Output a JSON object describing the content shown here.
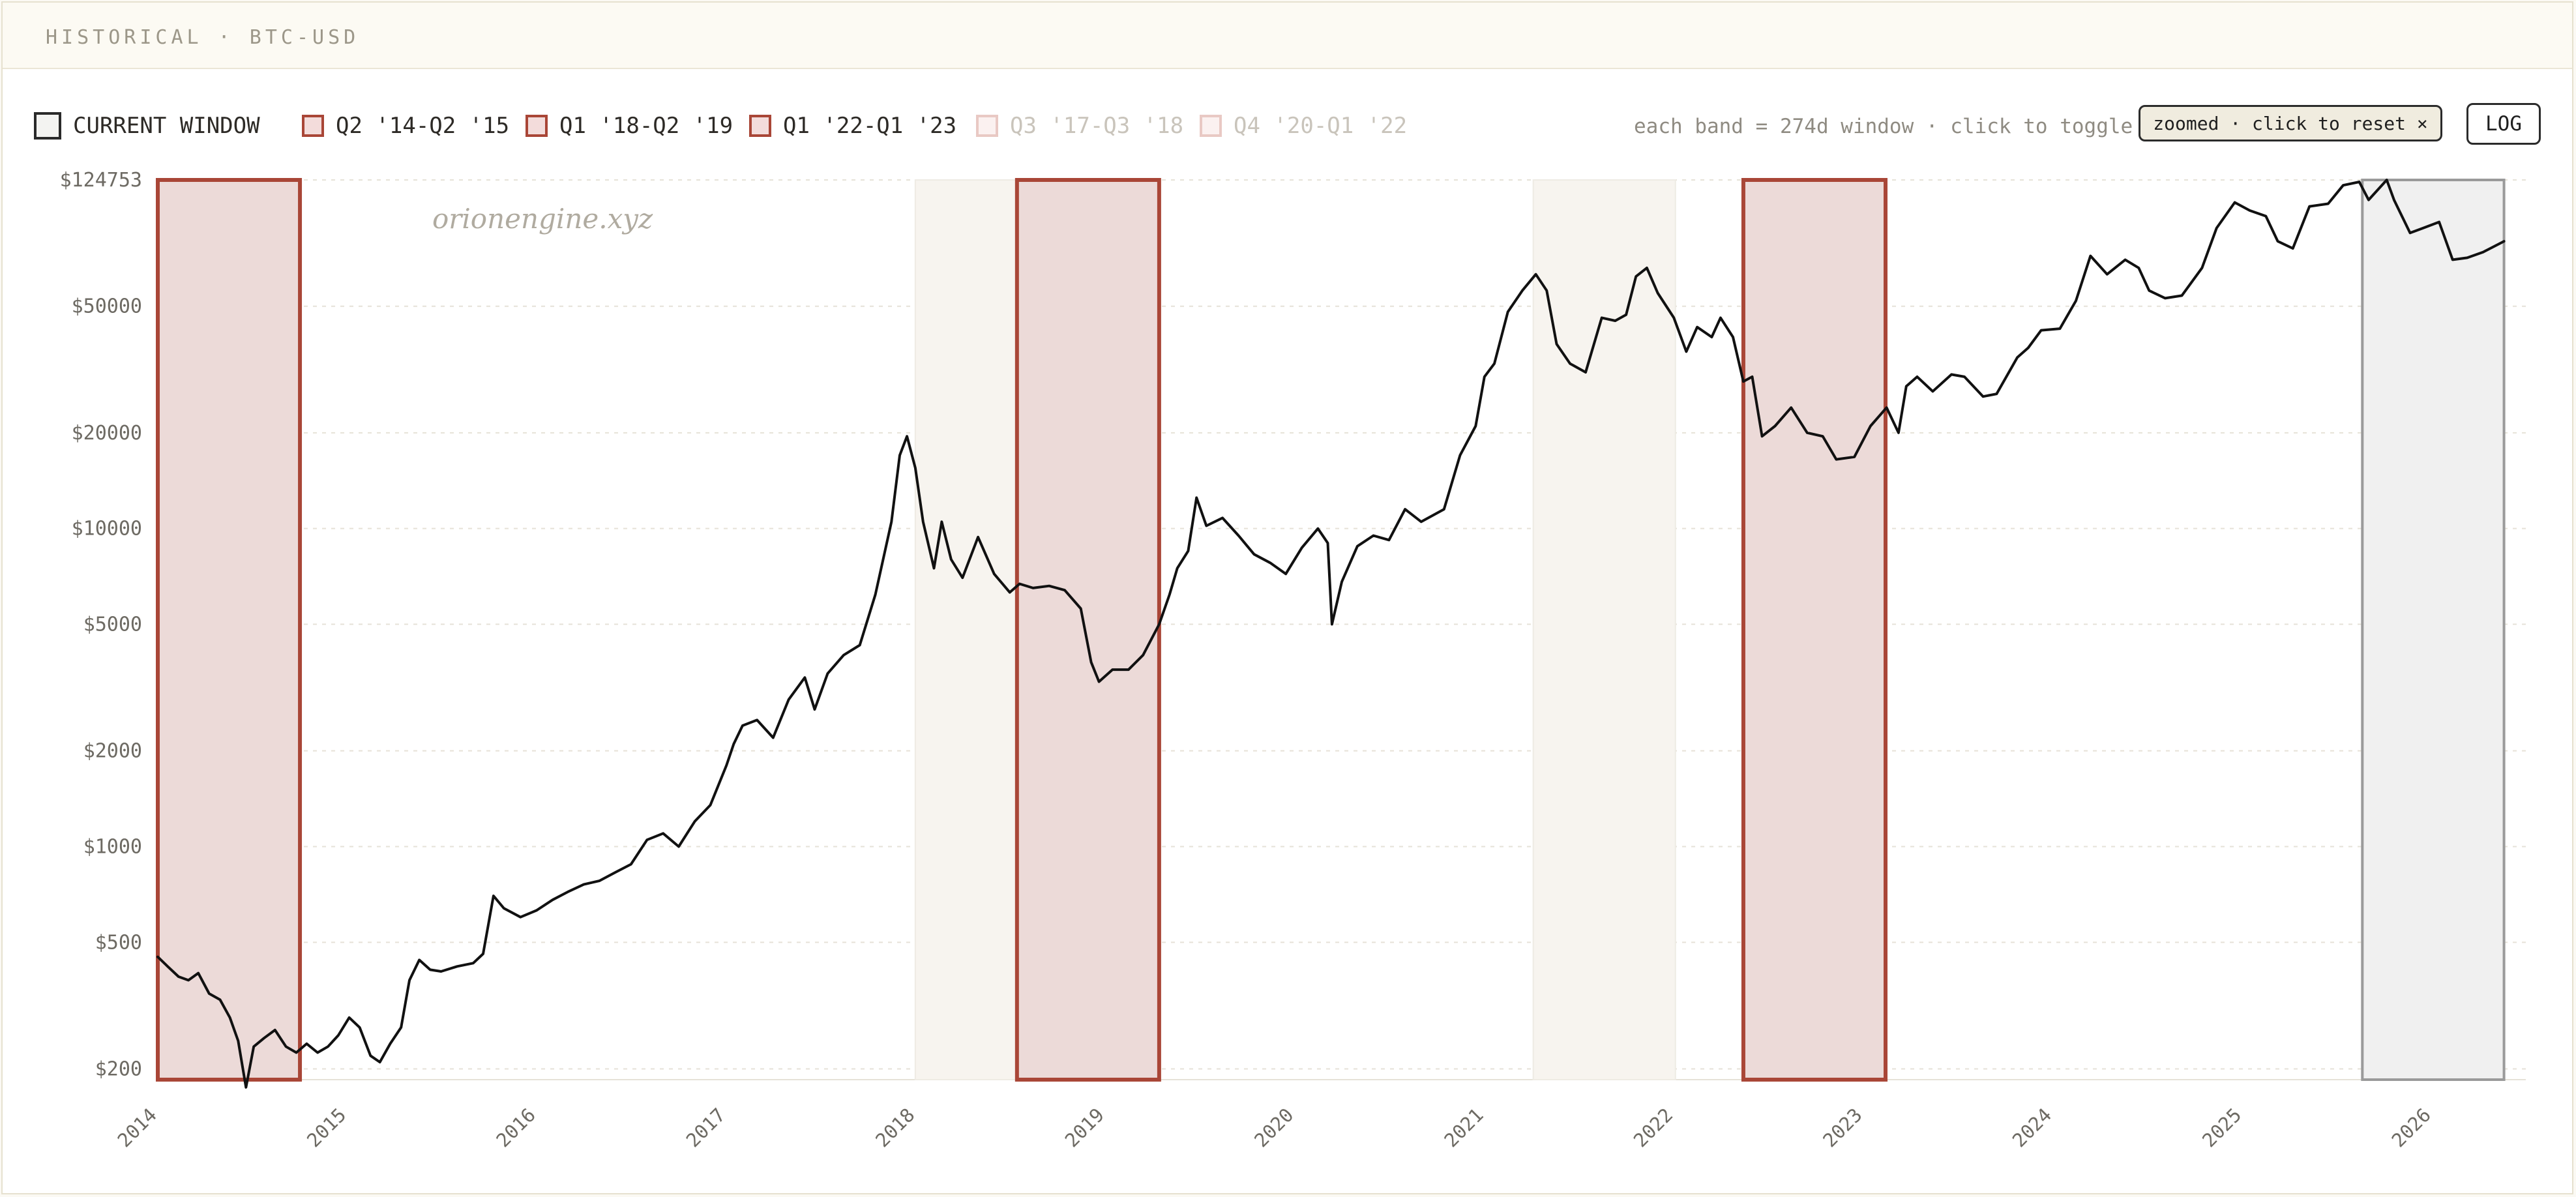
{
  "header": {
    "title": "HISTORICAL · BTC-USD"
  },
  "legend": {
    "current": {
      "label": "CURRENT WINDOW"
    },
    "bands": [
      {
        "label": "Q2 '14-Q2 '15",
        "active": true
      },
      {
        "label": "Q1 '18-Q2 '19",
        "active": true
      },
      {
        "label": "Q1 '22-Q1 '23",
        "active": true
      },
      {
        "label": "Q3 '17-Q3 '18",
        "active": false
      },
      {
        "label": "Q4 '20-Q1 '22",
        "active": false
      }
    ]
  },
  "controls": {
    "hint": "each band = 274d window · click to toggle",
    "zoom_label": "zoomed · click to reset ×",
    "log_label": "LOG"
  },
  "watermark": "orionengine.xyz",
  "colors": {
    "band_active_fill": "#ecdad8",
    "band_active_stroke": "#a94637",
    "band_inactive_fill": "#f7f4ef",
    "current_fill": "#f0f0f0",
    "current_stroke": "#9a9a9a",
    "line": "#111111",
    "grid": "#e6e2d8"
  },
  "chart_data": {
    "type": "line",
    "title": "",
    "xlabel": "",
    "ylabel": "",
    "yscale": "log",
    "ylim": [
      185,
      124753
    ],
    "xlim": [
      "2014-01-01",
      "2026-07-01"
    ],
    "grid": true,
    "yticks": [
      {
        "value": 124753,
        "label": "$124753"
      },
      {
        "value": 50000,
        "label": "$50000"
      },
      {
        "value": 20000,
        "label": "$20000"
      },
      {
        "value": 10000,
        "label": "$10000"
      },
      {
        "value": 5000,
        "label": "$5000"
      },
      {
        "value": 2000,
        "label": "$2000"
      },
      {
        "value": 1000,
        "label": "$1000"
      },
      {
        "value": 500,
        "label": "$500"
      },
      {
        "value": 200,
        "label": "$200"
      }
    ],
    "xticks": [
      {
        "date": "2014-01-01",
        "label": "2014"
      },
      {
        "date": "2015-01-01",
        "label": "2015"
      },
      {
        "date": "2016-01-01",
        "label": "2016"
      },
      {
        "date": "2017-01-01",
        "label": "2017"
      },
      {
        "date": "2018-01-01",
        "label": "2018"
      },
      {
        "date": "2019-01-01",
        "label": "2019"
      },
      {
        "date": "2020-01-01",
        "label": "2020"
      },
      {
        "date": "2021-01-01",
        "label": "2021"
      },
      {
        "date": "2022-01-01",
        "label": "2022"
      },
      {
        "date": "2023-01-01",
        "label": "2023"
      },
      {
        "date": "2024-01-01",
        "label": "2024"
      },
      {
        "date": "2025-01-01",
        "label": "2025"
      },
      {
        "date": "2026-01-01",
        "label": "2026"
      }
    ],
    "bands": [
      {
        "label": "Q2 '14-Q2 '15",
        "start": "2014-01-01",
        "end": "2014-10-02",
        "active": true
      },
      {
        "label": "Q1 '18-Q2 '19",
        "start": "2018-07-15",
        "end": "2019-04-15",
        "active": true
      },
      {
        "label": "Q1 '22-Q1 '23",
        "start": "2022-05-15",
        "end": "2023-02-13",
        "active": true
      },
      {
        "label": "Q3 '17-Q3 '18",
        "start": "2017-12-31",
        "end": "2018-10-01",
        "active": false
      },
      {
        "label": "Q4 '20-Q1 '22",
        "start": "2021-04-05",
        "end": "2022-01-04",
        "active": false
      }
    ],
    "current_window": {
      "start": "2025-08-20",
      "end": "2026-05-20"
    },
    "series": [
      {
        "points": [
          [
            "2014-01-01",
            450
          ],
          [
            "2014-01-20",
            420
          ],
          [
            "2014-02-10",
            390
          ],
          [
            "2014-03-01",
            380
          ],
          [
            "2014-03-20",
            400
          ],
          [
            "2014-04-10",
            345
          ],
          [
            "2014-05-01",
            330
          ],
          [
            "2014-05-20",
            290
          ],
          [
            "2014-06-05",
            245
          ],
          [
            "2014-06-20",
            175
          ],
          [
            "2014-07-05",
            235
          ],
          [
            "2014-07-25",
            250
          ],
          [
            "2014-08-15",
            265
          ],
          [
            "2014-09-05",
            235
          ],
          [
            "2014-09-25",
            225
          ],
          [
            "2014-10-15",
            240
          ],
          [
            "2014-11-05",
            225
          ],
          [
            "2014-11-25",
            235
          ],
          [
            "2014-12-15",
            255
          ],
          [
            "2015-01-05",
            290
          ],
          [
            "2015-01-25",
            270
          ],
          [
            "2015-02-15",
            220
          ],
          [
            "2015-03-05",
            210
          ],
          [
            "2015-03-25",
            240
          ],
          [
            "2015-04-15",
            270
          ],
          [
            "2015-05-01",
            380
          ],
          [
            "2015-05-20",
            440
          ],
          [
            "2015-06-10",
            410
          ],
          [
            "2015-07-01",
            405
          ],
          [
            "2015-08-01",
            420
          ],
          [
            "2015-09-01",
            430
          ],
          [
            "2015-09-20",
            460
          ],
          [
            "2015-10-10",
            700
          ],
          [
            "2015-10-30",
            640
          ],
          [
            "2015-12-01",
            600
          ],
          [
            "2016-01-01",
            630
          ],
          [
            "2016-02-01",
            680
          ],
          [
            "2016-03-01",
            720
          ],
          [
            "2016-04-01",
            760
          ],
          [
            "2016-05-01",
            780
          ],
          [
            "2016-06-01",
            830
          ],
          [
            "2016-07-01",
            880
          ],
          [
            "2016-08-01",
            1050
          ],
          [
            "2016-09-01",
            1100
          ],
          [
            "2016-10-01",
            1000
          ],
          [
            "2016-11-01",
            1200
          ],
          [
            "2016-12-01",
            1350
          ],
          [
            "2017-01-01",
            1800
          ],
          [
            "2017-01-15",
            2100
          ],
          [
            "2017-02-01",
            2400
          ],
          [
            "2017-03-01",
            2500
          ],
          [
            "2017-04-01",
            2200
          ],
          [
            "2017-05-01",
            2900
          ],
          [
            "2017-06-01",
            3400
          ],
          [
            "2017-06-20",
            2700
          ],
          [
            "2017-07-15",
            3500
          ],
          [
            "2017-08-15",
            4000
          ],
          [
            "2017-09-15",
            4300
          ],
          [
            "2017-10-15",
            6200
          ],
          [
            "2017-11-15",
            10500
          ],
          [
            "2017-12-01",
            17000
          ],
          [
            "2017-12-15",
            19500
          ],
          [
            "2017-12-31",
            15500
          ],
          [
            "2018-01-15",
            10500
          ],
          [
            "2018-02-05",
            7500
          ],
          [
            "2018-02-20",
            10500
          ],
          [
            "2018-03-10",
            8000
          ],
          [
            "2018-04-01",
            7000
          ],
          [
            "2018-05-01",
            9400
          ],
          [
            "2018-06-01",
            7200
          ],
          [
            "2018-07-01",
            6300
          ],
          [
            "2018-07-20",
            6700
          ],
          [
            "2018-08-15",
            6500
          ],
          [
            "2018-09-15",
            6600
          ],
          [
            "2018-10-15",
            6400
          ],
          [
            "2018-11-15",
            5600
          ],
          [
            "2018-12-05",
            3800
          ],
          [
            "2018-12-20",
            3300
          ],
          [
            "2019-01-15",
            3600
          ],
          [
            "2019-02-15",
            3600
          ],
          [
            "2019-03-15",
            4000
          ],
          [
            "2019-04-15",
            5000
          ],
          [
            "2019-05-05",
            6200
          ],
          [
            "2019-05-20",
            7500
          ],
          [
            "2019-06-10",
            8500
          ],
          [
            "2019-06-26",
            12500
          ],
          [
            "2019-07-15",
            10200
          ],
          [
            "2019-08-15",
            10800
          ],
          [
            "2019-09-15",
            9500
          ],
          [
            "2019-10-15",
            8300
          ],
          [
            "2019-11-15",
            7800
          ],
          [
            "2019-12-15",
            7200
          ],
          [
            "2020-01-15",
            8700
          ],
          [
            "2020-02-15",
            10000
          ],
          [
            "2020-03-05",
            9000
          ],
          [
            "2020-03-13",
            5000
          ],
          [
            "2020-04-01",
            6800
          ],
          [
            "2020-05-01",
            8800
          ],
          [
            "2020-06-01",
            9500
          ],
          [
            "2020-07-01",
            9200
          ],
          [
            "2020-08-01",
            11500
          ],
          [
            "2020-09-01",
            10500
          ],
          [
            "2020-10-15",
            11500
          ],
          [
            "2020-11-15",
            17000
          ],
          [
            "2020-12-15",
            21000
          ],
          [
            "2021-01-01",
            30000
          ],
          [
            "2021-01-20",
            33000
          ],
          [
            "2021-02-15",
            48000
          ],
          [
            "2021-03-15",
            56000
          ],
          [
            "2021-04-10",
            63000
          ],
          [
            "2021-05-01",
            56000
          ],
          [
            "2021-05-20",
            38000
          ],
          [
            "2021-06-15",
            33000
          ],
          [
            "2021-07-15",
            31000
          ],
          [
            "2021-08-15",
            46000
          ],
          [
            "2021-09-10",
            45000
          ],
          [
            "2021-10-01",
            47000
          ],
          [
            "2021-10-20",
            62000
          ],
          [
            "2021-11-10",
            66000
          ],
          [
            "2021-12-01",
            55000
          ],
          [
            "2022-01-01",
            46000
          ],
          [
            "2022-01-25",
            36000
          ],
          [
            "2022-02-15",
            43000
          ],
          [
            "2022-03-15",
            40000
          ],
          [
            "2022-04-01",
            46000
          ],
          [
            "2022-04-25",
            40000
          ],
          [
            "2022-05-15",
            29000
          ],
          [
            "2022-06-01",
            30000
          ],
          [
            "2022-06-20",
            19500
          ],
          [
            "2022-07-15",
            21000
          ],
          [
            "2022-08-15",
            24000
          ],
          [
            "2022-09-15",
            20000
          ],
          [
            "2022-10-15",
            19500
          ],
          [
            "2022-11-10",
            16500
          ],
          [
            "2022-12-15",
            16800
          ],
          [
            "2023-01-15",
            21000
          ],
          [
            "2023-02-15",
            24000
          ],
          [
            "2023-03-10",
            20000
          ],
          [
            "2023-03-25",
            28000
          ],
          [
            "2023-04-15",
            30000
          ],
          [
            "2023-05-15",
            27000
          ],
          [
            "2023-06-20",
            30500
          ],
          [
            "2023-07-15",
            30000
          ],
          [
            "2023-08-20",
            26000
          ],
          [
            "2023-09-15",
            26500
          ],
          [
            "2023-10-25",
            34500
          ],
          [
            "2023-11-15",
            37000
          ],
          [
            "2023-12-10",
            42000
          ],
          [
            "2024-01-15",
            42500
          ],
          [
            "2024-02-15",
            52000
          ],
          [
            "2024-03-14",
            72000
          ],
          [
            "2024-04-15",
            63000
          ],
          [
            "2024-05-20",
            70000
          ],
          [
            "2024-06-15",
            66000
          ],
          [
            "2024-07-05",
            56000
          ],
          [
            "2024-08-05",
            53000
          ],
          [
            "2024-09-06",
            54000
          ],
          [
            "2024-10-15",
            66000
          ],
          [
            "2024-11-12",
            88000
          ],
          [
            "2024-12-17",
            106000
          ],
          [
            "2025-01-15",
            100000
          ],
          [
            "2025-02-15",
            96000
          ],
          [
            "2025-03-10",
            80000
          ],
          [
            "2025-04-08",
            76000
          ],
          [
            "2025-05-10",
            103000
          ],
          [
            "2025-06-15",
            105000
          ],
          [
            "2025-07-14",
            120000
          ],
          [
            "2025-08-14",
            123000
          ],
          [
            "2025-09-01",
            108000
          ],
          [
            "2025-10-06",
            124753
          ],
          [
            "2025-10-20",
            108000
          ],
          [
            "2025-11-20",
            85000
          ],
          [
            "2025-12-15",
            88000
          ],
          [
            "2026-01-15",
            92000
          ],
          [
            "2026-02-10",
            70000
          ],
          [
            "2026-03-10",
            71000
          ],
          [
            "2026-04-10",
            74000
          ],
          [
            "2026-05-20",
            80000
          ]
        ]
      }
    ]
  }
}
